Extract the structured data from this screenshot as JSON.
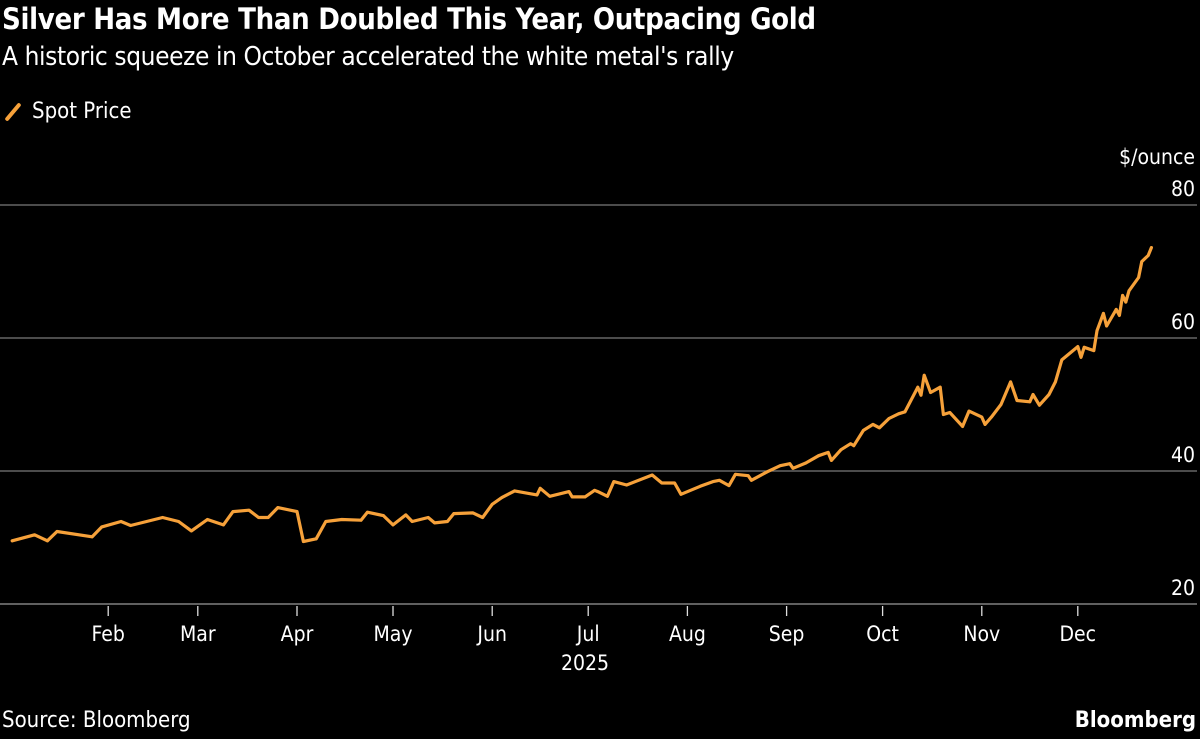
{
  "header": {
    "title": "Silver Has More Than Doubled This Year, Outpacing Gold",
    "subtitle": "A historic squeeze in October accelerated the white metal's rally"
  },
  "footer": {
    "source": "Source: Bloomberg",
    "brand": "Bloomberg"
  },
  "chart_data": {
    "type": "line",
    "title": "Silver Has More Than Doubled This Year, Outpacing Gold",
    "subtitle": "A historic squeeze in October accelerated the white metal's rally",
    "ylabel": "$/ounce",
    "xlabel": "2025",
    "ylim": [
      20,
      80
    ],
    "yticks": [
      20,
      40,
      60,
      80
    ],
    "xticks": [
      "Feb",
      "Mar",
      "Apr",
      "May",
      "Jun",
      "Jul",
      "Aug",
      "Sep",
      "Oct",
      "Nov",
      "Dec"
    ],
    "xlim": [
      "2025-01-01",
      "2025-12-31"
    ],
    "grid": "horizontal",
    "legend": "top-left",
    "colors": {
      "series": "#F6A13A",
      "grid": "#7a7a7a",
      "background": "#000000"
    },
    "series": [
      {
        "name": "Spot Price",
        "x": [
          "2025-01-02",
          "2025-01-09",
          "2025-01-13",
          "2025-01-16",
          "2025-01-27",
          "2025-01-30",
          "2025-02-05",
          "2025-02-08",
          "2025-02-18",
          "2025-02-23",
          "2025-02-27",
          "2025-03-04",
          "2025-03-09",
          "2025-03-12",
          "2025-03-17",
          "2025-03-20",
          "2025-03-23",
          "2025-03-26",
          "2025-04-01",
          "2025-04-03",
          "2025-04-07",
          "2025-04-10",
          "2025-04-15",
          "2025-04-21",
          "2025-04-23",
          "2025-04-28",
          "2025-05-01",
          "2025-05-05",
          "2025-05-07",
          "2025-05-12",
          "2025-05-14",
          "2025-05-18",
          "2025-05-20",
          "2025-05-26",
          "2025-05-29",
          "2025-06-01",
          "2025-06-04",
          "2025-06-08",
          "2025-06-15",
          "2025-06-16",
          "2025-06-19",
          "2025-06-25",
          "2025-06-26",
          "2025-06-30",
          "2025-07-03",
          "2025-07-04",
          "2025-07-07",
          "2025-07-09",
          "2025-07-13",
          "2025-07-21",
          "2025-07-24",
          "2025-07-28",
          "2025-07-30",
          "2025-08-05",
          "2025-08-09",
          "2025-08-11",
          "2025-08-14",
          "2025-08-16",
          "2025-08-20",
          "2025-08-21",
          "2025-08-26",
          "2025-08-30",
          "2025-09-02",
          "2025-09-03",
          "2025-09-07",
          "2025-09-11",
          "2025-09-14",
          "2025-09-15",
          "2025-09-18",
          "2025-09-21",
          "2025-09-22",
          "2025-09-25",
          "2025-09-28",
          "2025-09-30",
          "2025-10-03",
          "2025-10-06",
          "2025-10-08",
          "2025-10-12",
          "2025-10-13",
          "2025-10-14",
          "2025-10-16",
          "2025-10-19",
          "2025-10-20",
          "2025-10-22",
          "2025-10-26",
          "2025-10-28",
          "2025-11-01",
          "2025-11-02",
          "2025-11-04",
          "2025-11-07",
          "2025-11-10",
          "2025-11-12",
          "2025-11-16",
          "2025-11-17",
          "2025-11-19",
          "2025-11-22",
          "2025-11-24",
          "2025-11-26",
          "2025-12-01",
          "2025-12-02",
          "2025-12-03",
          "2025-12-06",
          "2025-12-07",
          "2025-12-09",
          "2025-12-10",
          "2025-12-13",
          "2025-12-14",
          "2025-12-15",
          "2025-12-16",
          "2025-12-17",
          "2025-12-20",
          "2025-12-21",
          "2025-12-23",
          "2025-12-24"
        ],
        "values": [
          29.5,
          30.4,
          29.5,
          30.9,
          30.1,
          31.6,
          32.4,
          31.8,
          33.0,
          32.4,
          31.0,
          32.7,
          31.9,
          33.9,
          34.1,
          33.0,
          33.0,
          34.5,
          33.9,
          29.4,
          29.8,
          32.4,
          32.7,
          32.6,
          33.8,
          33.3,
          31.9,
          33.4,
          32.4,
          33.0,
          32.2,
          32.4,
          33.6,
          33.7,
          33.0,
          35.0,
          36.0,
          37.0,
          36.4,
          37.4,
          36.2,
          36.9,
          36.1,
          36.1,
          37.1,
          36.9,
          36.2,
          38.4,
          37.9,
          39.4,
          38.2,
          38.2,
          36.5,
          37.7,
          38.4,
          38.6,
          37.8,
          39.5,
          39.3,
          38.6,
          39.9,
          40.8,
          41.1,
          40.4,
          41.2,
          42.3,
          42.8,
          41.6,
          43.2,
          44.1,
          43.8,
          46.1,
          47.0,
          46.5,
          47.9,
          48.6,
          48.9,
          52.6,
          51.4,
          54.4,
          51.8,
          52.6,
          48.5,
          48.8,
          46.7,
          49.0,
          48.1,
          47.0,
          48.1,
          50.0,
          53.4,
          50.6,
          50.4,
          51.5,
          49.9,
          51.5,
          53.4,
          56.7,
          58.7,
          57.1,
          58.6,
          58.1,
          61.1,
          63.7,
          61.8,
          64.3,
          63.4,
          66.4,
          65.4,
          67.1,
          69.1,
          71.5,
          72.4,
          73.6
        ]
      }
    ]
  }
}
